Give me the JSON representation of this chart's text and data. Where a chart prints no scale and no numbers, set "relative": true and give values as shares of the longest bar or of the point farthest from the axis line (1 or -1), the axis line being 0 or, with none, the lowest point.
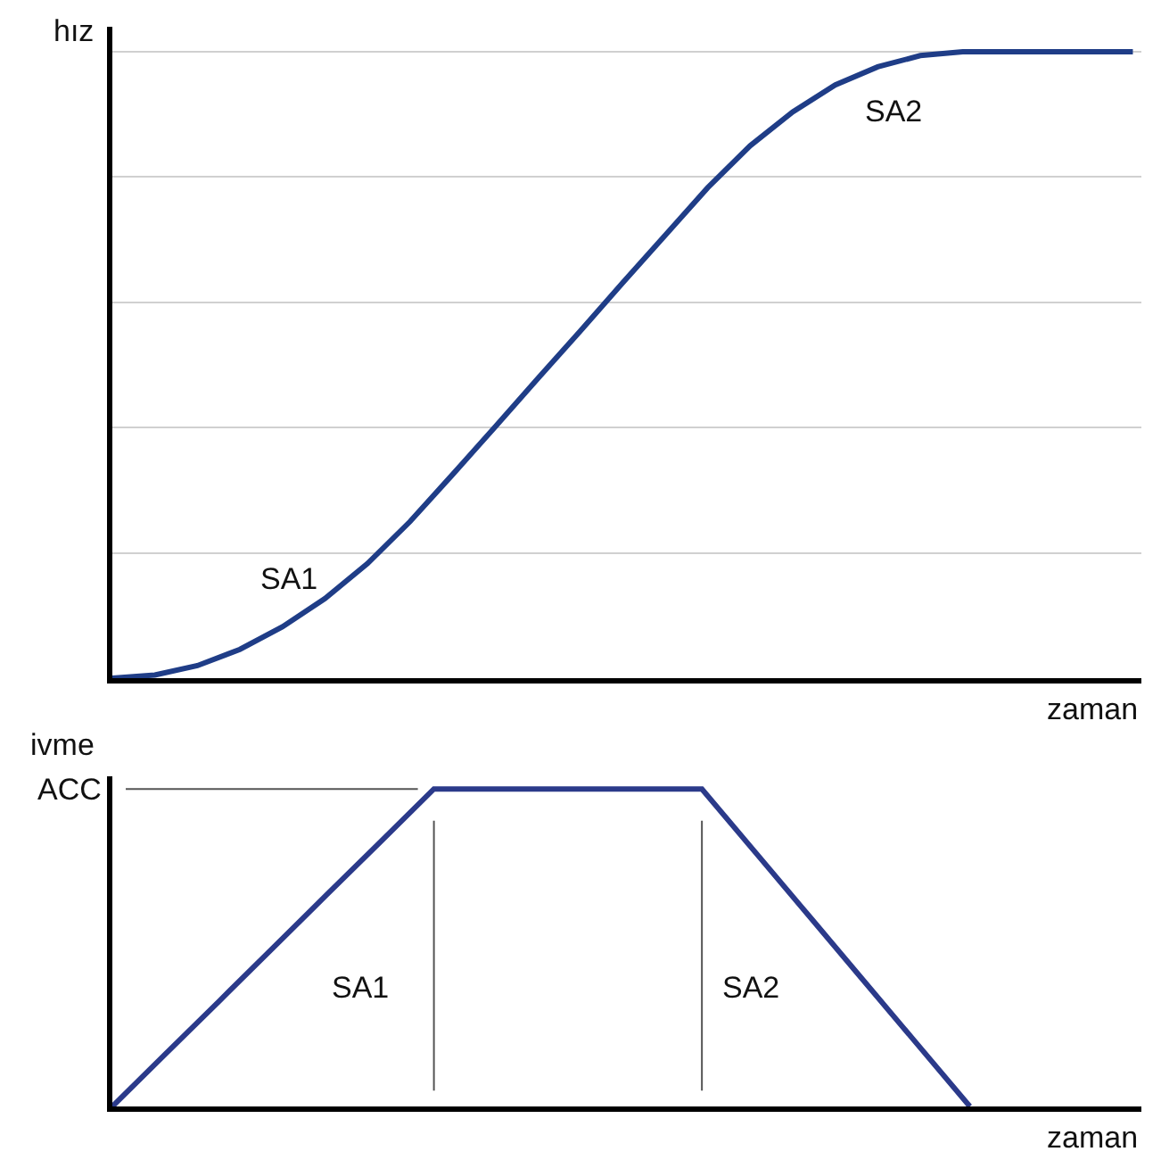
{
  "chart_data": [
    {
      "type": "line",
      "relative": true,
      "ylabel": "hız",
      "xlabel": "zaman",
      "grid": "y",
      "tick_labels": false,
      "marker": "none",
      "line_style": "solid",
      "categories": [
        null,
        null,
        null,
        null,
        null,
        null,
        null,
        null,
        null,
        null,
        null,
        null,
        null,
        null,
        null,
        null,
        null,
        null,
        null,
        null,
        null,
        null,
        null,
        null,
        null
      ],
      "series": [
        {
          "color": "#1f3d87",
          "values": [
            0,
            0.005,
            0.02,
            0.046,
            0.082,
            0.127,
            0.183,
            0.25,
            0.325,
            0.401,
            0.478,
            0.554,
            0.631,
            0.707,
            0.783,
            0.85,
            0.904,
            0.947,
            0.976,
            0.994,
            1,
            1,
            1,
            1,
            1
          ]
        }
      ],
      "annotations": [
        "SA1",
        "SA2"
      ]
    },
    {
      "type": "line",
      "relative": true,
      "ylabel": "ivme",
      "xlabel": "zaman",
      "grid": false,
      "tick_labels": false,
      "marker": "none",
      "line_style": "solid",
      "categories": [
        null,
        null,
        null,
        null,
        null,
        null,
        null,
        null,
        null,
        null,
        null,
        null,
        null,
        null,
        null,
        null,
        null,
        null,
        null,
        null
      ],
      "series": [
        {
          "color": "#2b3a8a",
          "values": [
            0,
            0.167,
            0.333,
            0.5,
            0.667,
            0.833,
            1,
            1,
            1,
            1,
            1,
            1,
            0.8,
            0.6,
            0.4,
            0.2,
            0,
            null,
            null,
            null
          ]
        }
      ],
      "ref_lines": [
        {
          "axis": "y",
          "value": 1,
          "label": "ACC",
          "color": "#555555"
        }
      ],
      "annotations": [
        "SA1",
        "SA2"
      ]
    }
  ]
}
